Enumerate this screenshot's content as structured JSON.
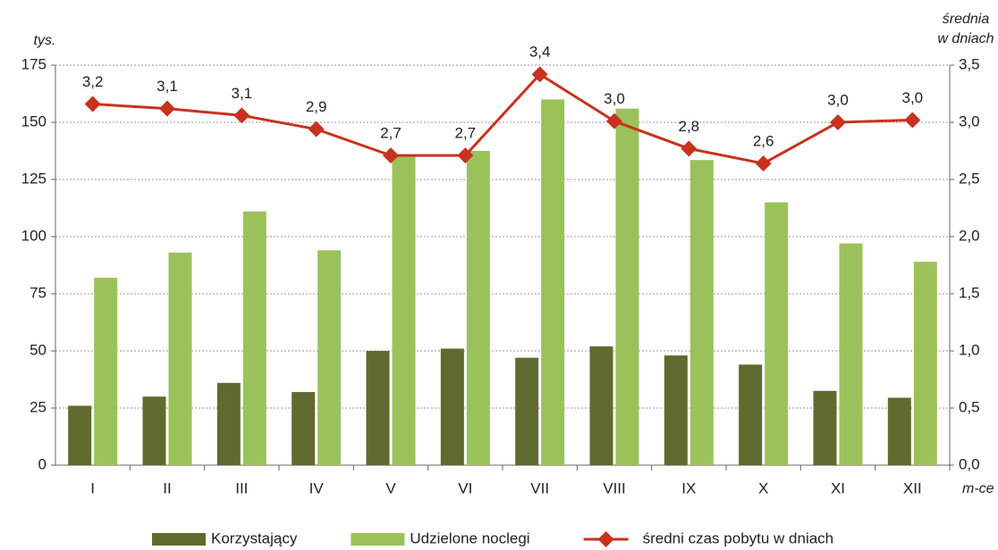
{
  "chart_data": {
    "type": "bar-line",
    "ylabel": "tys.",
    "y2label": [
      "średnia",
      "w dniach"
    ],
    "xlabel": "m-ce",
    "categories": [
      "I",
      "II",
      "III",
      "IV",
      "V",
      "VI",
      "VII",
      "VIII",
      "IX",
      "X",
      "XI",
      "XII"
    ],
    "series": [
      {
        "name": "Korzystający",
        "color": "#5f6b2e",
        "values": [
          26,
          30,
          36,
          32,
          50,
          51,
          47,
          52,
          48,
          44,
          32.5,
          29.5
        ]
      },
      {
        "name": "Udzielone noclegi",
        "color": "#9bc25a",
        "values": [
          82,
          93,
          111,
          94,
          135,
          137.5,
          160,
          156,
          133.5,
          115,
          97,
          89
        ]
      },
      {
        "name": "średni czas pobytu w dniach",
        "color": "#c8321e",
        "axis": "y2",
        "values": [
          3.16,
          3.12,
          3.06,
          2.94,
          2.71,
          2.71,
          3.42,
          3.01,
          2.77,
          2.64,
          3.0,
          3.02
        ],
        "value_labels": [
          "3,2",
          "3,1",
          "3,1",
          "2,9",
          "2,7",
          "2,7",
          "3,4",
          "3,0",
          "2,8",
          "2,6",
          "3,0",
          "3,0"
        ]
      }
    ],
    "ylim": [
      0,
      175
    ],
    "yticks": [
      0,
      25,
      50,
      75,
      100,
      125,
      150,
      175
    ],
    "y2lim": [
      0,
      3.5
    ],
    "y2ticks": [
      {
        "value": 0,
        "label": "0,0"
      },
      {
        "value": 0.5,
        "label": "0,5"
      },
      {
        "value": 1,
        "label": "1,0"
      },
      {
        "value": 1.5,
        "label": "1,5"
      },
      {
        "value": 2,
        "label": "2,0"
      },
      {
        "value": 2.5,
        "label": "2,5"
      },
      {
        "value": 3,
        "label": "3,0"
      },
      {
        "value": 3.5,
        "label": "3,5"
      }
    ],
    "grid": true
  }
}
